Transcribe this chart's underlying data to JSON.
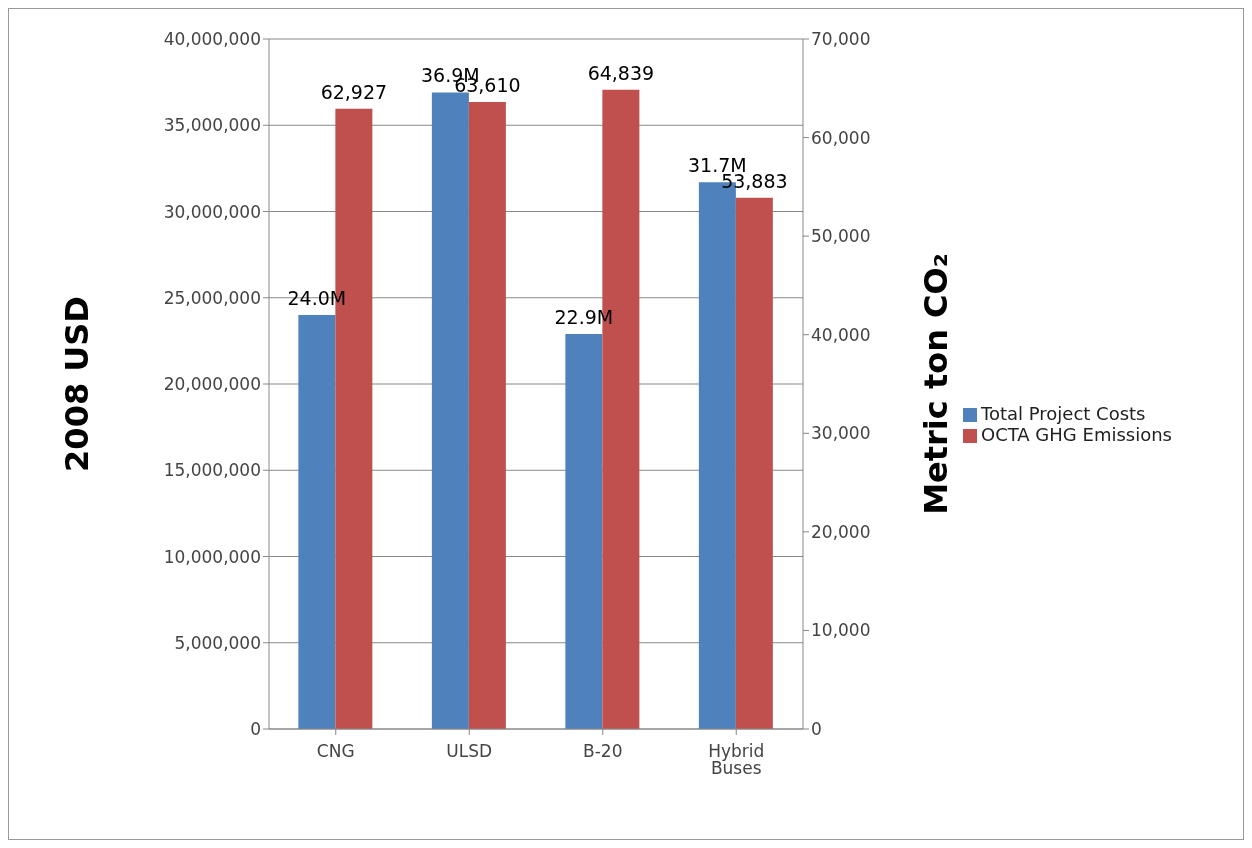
{
  "chart_data": {
    "type": "bar",
    "categories": [
      "CNG",
      "ULSD",
      "B-20",
      "Hybrid Buses"
    ],
    "series": [
      {
        "name": "Total Project Costs",
        "color": "#4f81bd",
        "values": [
          24000000,
          36900000,
          22900000,
          31700000
        ],
        "value_labels": [
          "24.0M",
          "36.9M",
          "22.9M",
          "31.7M"
        ]
      },
      {
        "name": "OCTA GHG Emissions",
        "color": "#c0504d",
        "axis": "y2",
        "values": [
          62927,
          63610,
          64839,
          53883
        ],
        "value_labels": [
          "62,927",
          "63,610",
          "64,839",
          "53,883"
        ]
      }
    ],
    "ylabel": "2008 USD",
    "y2label": "Metric ton CO₂",
    "ylim": [
      0,
      40000000
    ],
    "yticks": [
      0,
      {
        "value": 5000000,
        "label": "5,000,000"
      },
      {
        "value": 10000000,
        "label": "10,000,000"
      },
      {
        "value": 15000000,
        "label": "15,000,000"
      },
      {
        "value": 20000000,
        "label": "20,000,000"
      },
      {
        "value": 25000000,
        "label": "25,000,000"
      },
      {
        "value": 30000000,
        "label": "30,000,000"
      },
      {
        "value": 35000000,
        "label": "35,000,000"
      },
      {
        "value": 40000000,
        "label": "40,000,000"
      }
    ],
    "y2lim": [
      0,
      70000
    ],
    "y2ticks": [
      0,
      {
        "value": 10000,
        "label": "10,000"
      },
      {
        "value": 20000,
        "label": "20,000"
      },
      {
        "value": 30000,
        "label": "30,000"
      },
      {
        "value": 40000,
        "label": "40,000"
      },
      {
        "value": 50000,
        "label": "50,000"
      },
      {
        "value": 60000,
        "label": "60,000"
      },
      {
        "value": 70000,
        "label": "70,000"
      }
    ],
    "grid": "y",
    "legend": "right"
  }
}
